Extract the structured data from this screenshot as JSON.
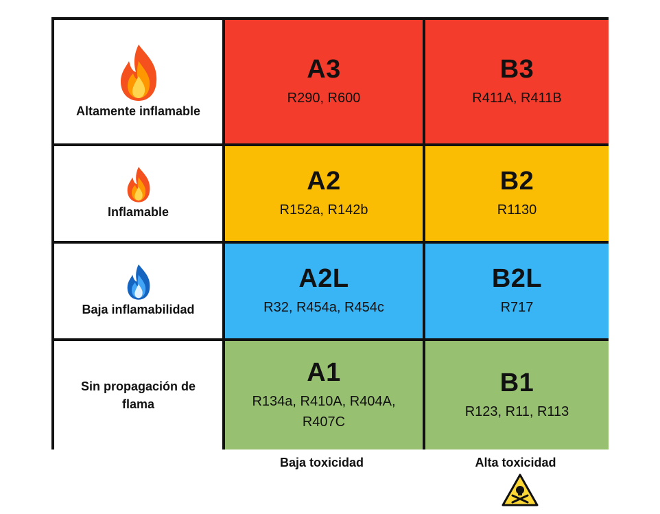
{
  "colors": {
    "a3": "#f43c2c",
    "b3": "#f43c2c",
    "a2": "#fbbc04",
    "b2": "#fbbc04",
    "a2l": "#39b5f6",
    "b2l": "#39b5f6",
    "a1": "#98c071",
    "b1": "#98c071"
  },
  "rows": [
    {
      "label": "Altamente inflamable",
      "icon": "fire-icon"
    },
    {
      "label": "Inflamable",
      "icon": "fire-icon"
    },
    {
      "label": "Baja inflamabilidad",
      "icon": "blue-fire-icon"
    },
    {
      "label": "Sin propagación de flama",
      "icon": ""
    }
  ],
  "columns": [
    {
      "label": "Baja toxicidad",
      "icon": ""
    },
    {
      "label": "Alta toxicidad",
      "icon": "toxic-warning-icon"
    }
  ],
  "cells": {
    "a3": {
      "code": "A3",
      "examples": "R290,  R600"
    },
    "b3": {
      "code": "B3",
      "examples": "R411A, R411B"
    },
    "a2": {
      "code": "A2",
      "examples": "R152a, R142b"
    },
    "b2": {
      "code": "B2",
      "examples": "R1130"
    },
    "a2l": {
      "code": "A2L",
      "examples": "R32, R454a, R454c"
    },
    "b2l": {
      "code": "B2L",
      "examples": "R717"
    },
    "a1": {
      "code": "A1",
      "examples": "R134a, R410A, R404A, R407C"
    },
    "b1": {
      "code": "B1",
      "examples": "R123, R11, R113"
    }
  }
}
